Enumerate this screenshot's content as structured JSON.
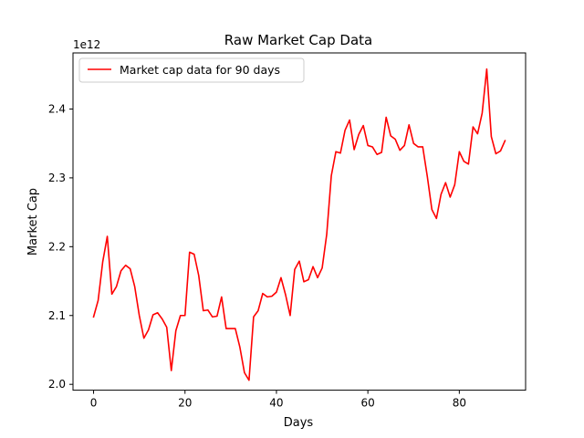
{
  "chart_data": {
    "type": "line",
    "title": "Raw Market Cap Data",
    "xlabel": "Days",
    "ylabel": "Market Cap",
    "y_offset_label": "1e12",
    "xlim": [
      -4.5,
      94.5
    ],
    "ylim": [
      1.9915,
      2.4815
    ],
    "xticks": [
      0,
      20,
      40,
      60,
      80
    ],
    "xtick_labels": [
      "0",
      "20",
      "40",
      "60",
      "80"
    ],
    "yticks": [
      2.0,
      2.1,
      2.2,
      2.3,
      2.4
    ],
    "ytick_labels": [
      "2.0",
      "2.1",
      "2.2",
      "2.3",
      "2.4"
    ],
    "grid": false,
    "legend_position": "upper-left",
    "series": [
      {
        "name": "Market cap data for 90 days",
        "color": "#ff0000",
        "x": [
          0,
          1,
          2,
          3,
          4,
          5,
          6,
          7,
          8,
          9,
          10,
          11,
          12,
          13,
          14,
          15,
          16,
          17,
          18,
          19,
          20,
          21,
          22,
          23,
          24,
          25,
          26,
          27,
          28,
          29,
          30,
          31,
          32,
          33,
          34,
          35,
          36,
          37,
          38,
          39,
          40,
          41,
          42,
          43,
          44,
          45,
          46,
          47,
          48,
          49,
          50,
          51,
          52,
          53,
          54,
          55,
          56,
          57,
          58,
          59,
          60,
          61,
          62,
          63,
          64,
          65,
          66,
          67,
          68,
          69,
          70,
          71,
          72,
          73,
          74,
          75,
          76,
          77,
          78,
          79,
          80,
          81,
          82,
          83,
          84,
          85,
          86,
          87,
          88,
          89,
          90
        ],
        "y": [
          2.098,
          2.122,
          2.178,
          2.215,
          2.131,
          2.142,
          2.165,
          2.173,
          2.168,
          2.142,
          2.1,
          2.067,
          2.079,
          2.101,
          2.104,
          2.095,
          2.083,
          2.02,
          2.078,
          2.1,
          2.1,
          2.192,
          2.189,
          2.158,
          2.107,
          2.108,
          2.098,
          2.099,
          2.127,
          2.081,
          2.081,
          2.081,
          2.054,
          2.017,
          2.006,
          2.098,
          2.107,
          2.132,
          2.127,
          2.128,
          2.134,
          2.155,
          2.13,
          2.1,
          2.167,
          2.179,
          2.149,
          2.152,
          2.171,
          2.155,
          2.169,
          2.218,
          2.303,
          2.338,
          2.336,
          2.369,
          2.384,
          2.341,
          2.363,
          2.376,
          2.347,
          2.345,
          2.334,
          2.337,
          2.388,
          2.361,
          2.356,
          2.34,
          2.347,
          2.377,
          2.35,
          2.345,
          2.345,
          2.302,
          2.254,
          2.241,
          2.276,
          2.293,
          2.272,
          2.29,
          2.338,
          2.324,
          2.32,
          2.374,
          2.364,
          2.394,
          2.458,
          2.36,
          2.335,
          2.339,
          2.354
        ]
      }
    ]
  }
}
